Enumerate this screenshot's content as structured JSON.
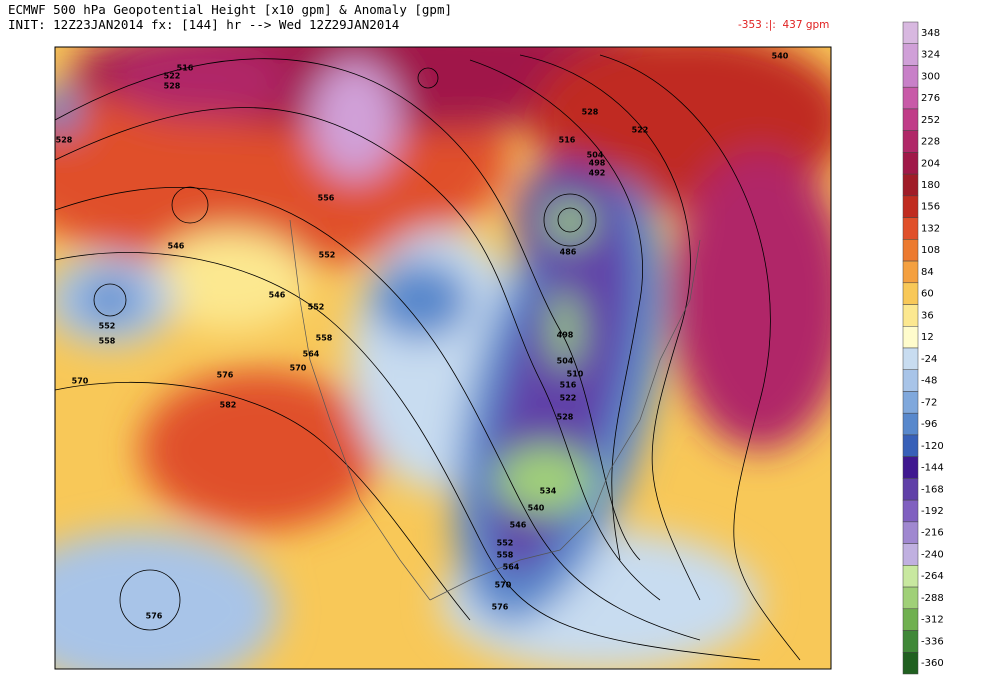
{
  "header": {
    "title": "ECMWF 500 hPa Geopotential Height [x10 gpm] & Anomaly [gpm]",
    "subtitle": "INIT: 12Z23JAN2014 fx: [144] hr --> Wed 12Z29JAN2014",
    "range": "-353 :|:  437 gpm"
  },
  "contour_labels": [
    "516",
    "522",
    "528",
    "528",
    "516",
    "522",
    "504",
    "498",
    "492",
    "540",
    "556",
    "546",
    "552",
    "546",
    "552",
    "558",
    "564",
    "570",
    "552",
    "558",
    "570",
    "576",
    "582",
    "486",
    "498",
    "504",
    "510",
    "516",
    "522",
    "528",
    "534",
    "540",
    "546",
    "552",
    "558",
    "564",
    "570",
    "576",
    "576",
    "528"
  ],
  "colorbar": [
    {
      "label": "348",
      "color": "#d8b8e0"
    },
    {
      "label": "324",
      "color": "#d0a0d8"
    },
    {
      "label": "300",
      "color": "#c880c8"
    },
    {
      "label": "276",
      "color": "#c85aa8"
    },
    {
      "label": "252",
      "color": "#c03c88"
    },
    {
      "label": "228",
      "color": "#b02868"
    },
    {
      "label": "204",
      "color": "#a01848"
    },
    {
      "label": "180",
      "color": "#a01c28"
    },
    {
      "label": "156",
      "color": "#c02c20"
    },
    {
      "label": "132",
      "color": "#e0502a"
    },
    {
      "label": "108",
      "color": "#ec7a30"
    },
    {
      "label": "84",
      "color": "#f4a040"
    },
    {
      "label": "60",
      "color": "#f8c858"
    },
    {
      "label": "36",
      "color": "#fce890"
    },
    {
      "label": "12",
      "color": "#fffccc"
    },
    {
      "label": "-24",
      "color": "#c8dcf0"
    },
    {
      "label": "-48",
      "color": "#a8c4e8"
    },
    {
      "label": "-72",
      "color": "#80a8dc"
    },
    {
      "label": "-96",
      "color": "#5888cc"
    },
    {
      "label": "-120",
      "color": "#3860b8"
    },
    {
      "label": "-144",
      "color": "#401890"
    },
    {
      "label": "-168",
      "color": "#6040a8"
    },
    {
      "label": "-192",
      "color": "#8060c0"
    },
    {
      "label": "-216",
      "color": "#a088d0"
    },
    {
      "label": "-240",
      "color": "#c0b0e0"
    },
    {
      "label": "-264",
      "color": "#c8e8a0"
    },
    {
      "label": "-288",
      "color": "#a0d078"
    },
    {
      "label": "-312",
      "color": "#70b050"
    },
    {
      "label": "-336",
      "color": "#408838"
    },
    {
      "label": "-360",
      "color": "#206020"
    }
  ]
}
